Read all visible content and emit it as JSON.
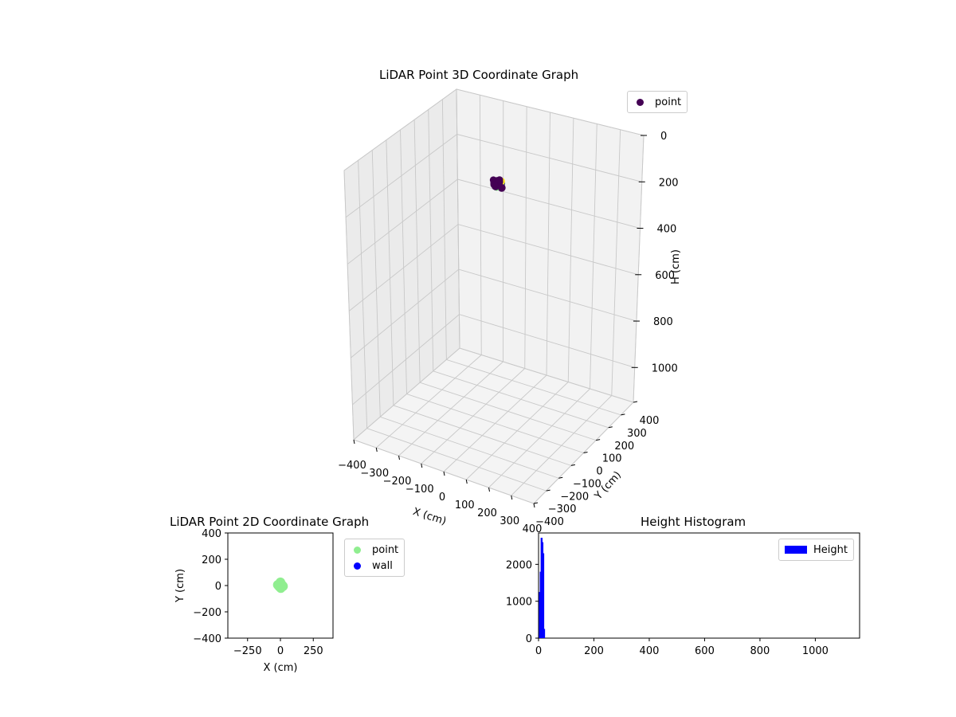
{
  "charts": {
    "c3d": {
      "title": "LiDAR Point 3D Coordinate Graph",
      "legend": "point",
      "legend_color": "#440154",
      "xlabel": "X (cm)",
      "ylabel": "Y (cm)",
      "zlabel": "H (cm)",
      "xticks": [
        "−400",
        "−300",
        "−200",
        "−100",
        "0",
        "100",
        "200",
        "300",
        "400"
      ],
      "yticks": [
        "−400",
        "−300",
        "−200",
        "−100",
        "0",
        "100",
        "200",
        "300",
        "400"
      ],
      "zticks": [
        "0",
        "200",
        "400",
        "600",
        "800",
        "1000"
      ]
    },
    "c2d": {
      "title": "LiDAR Point 2D Coordinate Graph",
      "xlabel": "X (cm)",
      "ylabel": "Y (cm)",
      "xticks": [
        "−250",
        "0",
        "250"
      ],
      "yticks": [
        "400",
        "200",
        "0",
        "−200",
        "−400"
      ],
      "legend": [
        {
          "label": "point",
          "color": "#90ee90"
        },
        {
          "label": "wall",
          "color": "#0000ff"
        }
      ]
    },
    "hist": {
      "title": "Height Histogram",
      "legend": "Height",
      "color": "#0000ff",
      "xticks": [
        "0",
        "200",
        "400",
        "600",
        "800",
        "1000"
      ],
      "yticks": [
        "0",
        "1000",
        "2000"
      ]
    }
  },
  "chart_data": [
    {
      "type": "scatter",
      "title": "LiDAR Point 3D Coordinate Graph",
      "xlabel": "X (cm)",
      "ylabel": "Y (cm)",
      "zlabel": "H (cm)",
      "xlim": [
        -400,
        400
      ],
      "ylim": [
        -400,
        400
      ],
      "zlim": [
        1150,
        0
      ],
      "grid": true,
      "legend_position": "top-right",
      "series": [
        {
          "name": "point",
          "points_xyz": [
            [
              0,
              0,
              80
            ],
            [
              10,
              5,
              85
            ],
            [
              -10,
              -5,
              90
            ],
            [
              5,
              -10,
              75
            ],
            [
              -5,
              10,
              95
            ],
            [
              15,
              0,
              100
            ],
            [
              -15,
              0,
              82
            ],
            [
              0,
              15,
              88
            ],
            [
              0,
              -15,
              92
            ],
            [
              8,
              8,
              78
            ],
            [
              -8,
              -8,
              96
            ]
          ]
        }
      ]
    },
    {
      "type": "scatter",
      "title": "LiDAR Point 2D Coordinate Graph",
      "xlabel": "X (cm)",
      "ylabel": "Y (cm)",
      "xlim": [
        -400,
        400
      ],
      "ylim": [
        -400,
        400
      ],
      "legend_position": "outside-right",
      "series": [
        {
          "name": "point",
          "points": [
            [
              0,
              0
            ],
            [
              10,
              5
            ],
            [
              -10,
              -5
            ],
            [
              5,
              -10
            ],
            [
              -5,
              10
            ],
            [
              15,
              0
            ],
            [
              -15,
              0
            ],
            [
              0,
              15
            ],
            [
              0,
              -15
            ],
            [
              8,
              8
            ],
            [
              -8,
              -8
            ],
            [
              20,
              -5
            ],
            [
              -20,
              5
            ],
            [
              0,
              25
            ],
            [
              3,
              -20
            ]
          ]
        },
        {
          "name": "wall",
          "points": []
        }
      ]
    },
    {
      "type": "bar",
      "title": "Height Histogram",
      "xlim": [
        0,
        1160
      ],
      "ylim": [
        0,
        2850
      ],
      "legend_position": "top-right",
      "series": [
        {
          "name": "Height",
          "bins": [
            [
              5,
              1250
            ],
            [
              8,
              1800
            ],
            [
              11,
              2720
            ],
            [
              14,
              2600
            ],
            [
              17,
              2300
            ],
            [
              20,
              250
            ]
          ]
        }
      ]
    }
  ]
}
